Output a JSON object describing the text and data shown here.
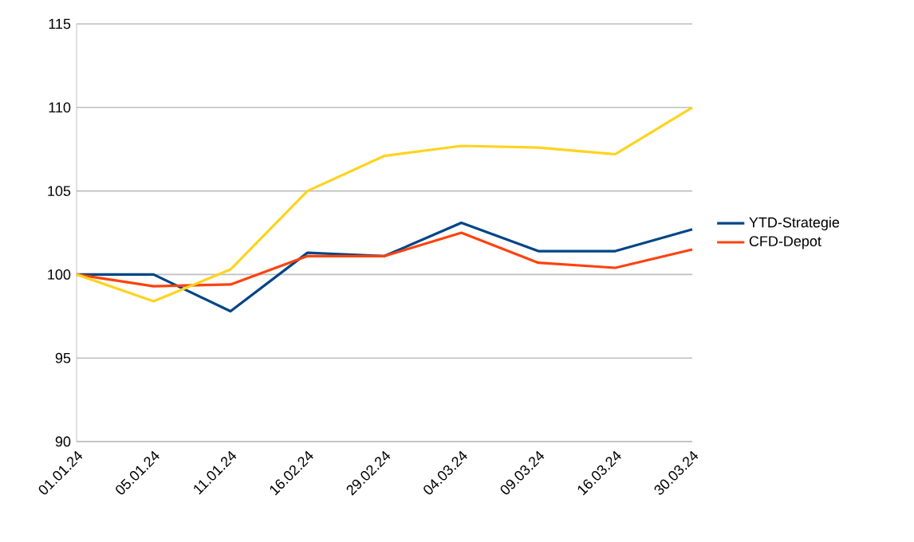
{
  "chart_data": {
    "type": "line",
    "categories": [
      "01.01.24",
      "05.01.24",
      "11.01.24",
      "16.02.24",
      "29.02.24",
      "04.03.24",
      "09.03.24",
      "16.03.24",
      "30.03.24"
    ],
    "series": [
      {
        "name": "YTD-Strategie",
        "color": "#004586",
        "values": [
          100,
          100,
          97.8,
          101.3,
          101.1,
          103.1,
          101.4,
          101.4,
          102.7
        ]
      },
      {
        "name": "CFD-Depot",
        "color": "#ff420e",
        "values": [
          100,
          99.3,
          99.4,
          101.1,
          101.1,
          102.5,
          100.7,
          100.4,
          101.5
        ]
      },
      {
        "color": "#ffd320",
        "values": [
          100,
          98.4,
          100.3,
          105.0,
          107.1,
          107.7,
          107.6,
          107.2,
          110.0
        ]
      }
    ],
    "ylim": [
      90,
      115
    ],
    "yticks": [
      90,
      95,
      100,
      105,
      110,
      115
    ],
    "grid": "y",
    "legend": "right",
    "marker": "none",
    "line_style": "solid"
  }
}
